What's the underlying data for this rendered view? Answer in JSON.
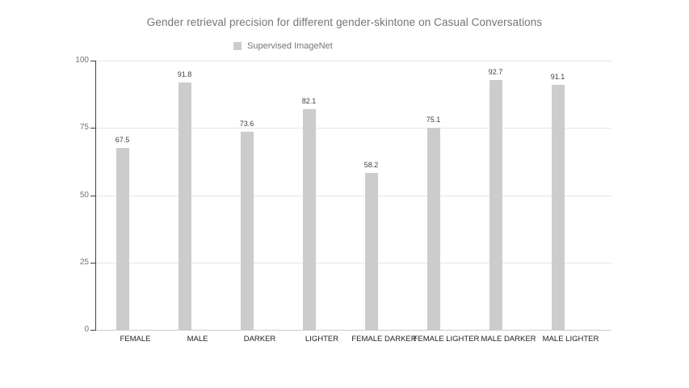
{
  "chart_data": {
    "type": "bar",
    "title": "Gender retrieval precision for different gender-skintone on Casual Conversations",
    "categories": [
      "FEMALE",
      "MALE",
      "DARKER",
      "LIGHTER",
      "FEMALE DARKER",
      "FEMALE LIGHTER",
      "MALE DARKER",
      "MALE LIGHTER"
    ],
    "series": [
      {
        "name": "Supervised ImageNet",
        "color": "#cccccc",
        "values": [
          67.5,
          91.8,
          73.6,
          82.1,
          58.2,
          75.1,
          92.7,
          91.1
        ]
      }
    ],
    "value_labels": [
      "67.5",
      "91.8",
      "73.6",
      "82.1",
      "58.2",
      "75.1",
      "92.7",
      "91.1"
    ],
    "xlabel": "",
    "ylabel": "",
    "ylim": [
      0,
      100
    ],
    "yticks": [
      0,
      25,
      50,
      75,
      100
    ],
    "grid": true,
    "legend_position": "top"
  },
  "colors": {
    "background": "#ffffff",
    "bar": "#cccccc",
    "gridline": "#e6e6e6",
    "baseline": "#cccccc",
    "axis": "#424242",
    "title_text": "#757575",
    "tick_text": "#757575",
    "value_text": "#404040",
    "category_text": "#222222"
  }
}
